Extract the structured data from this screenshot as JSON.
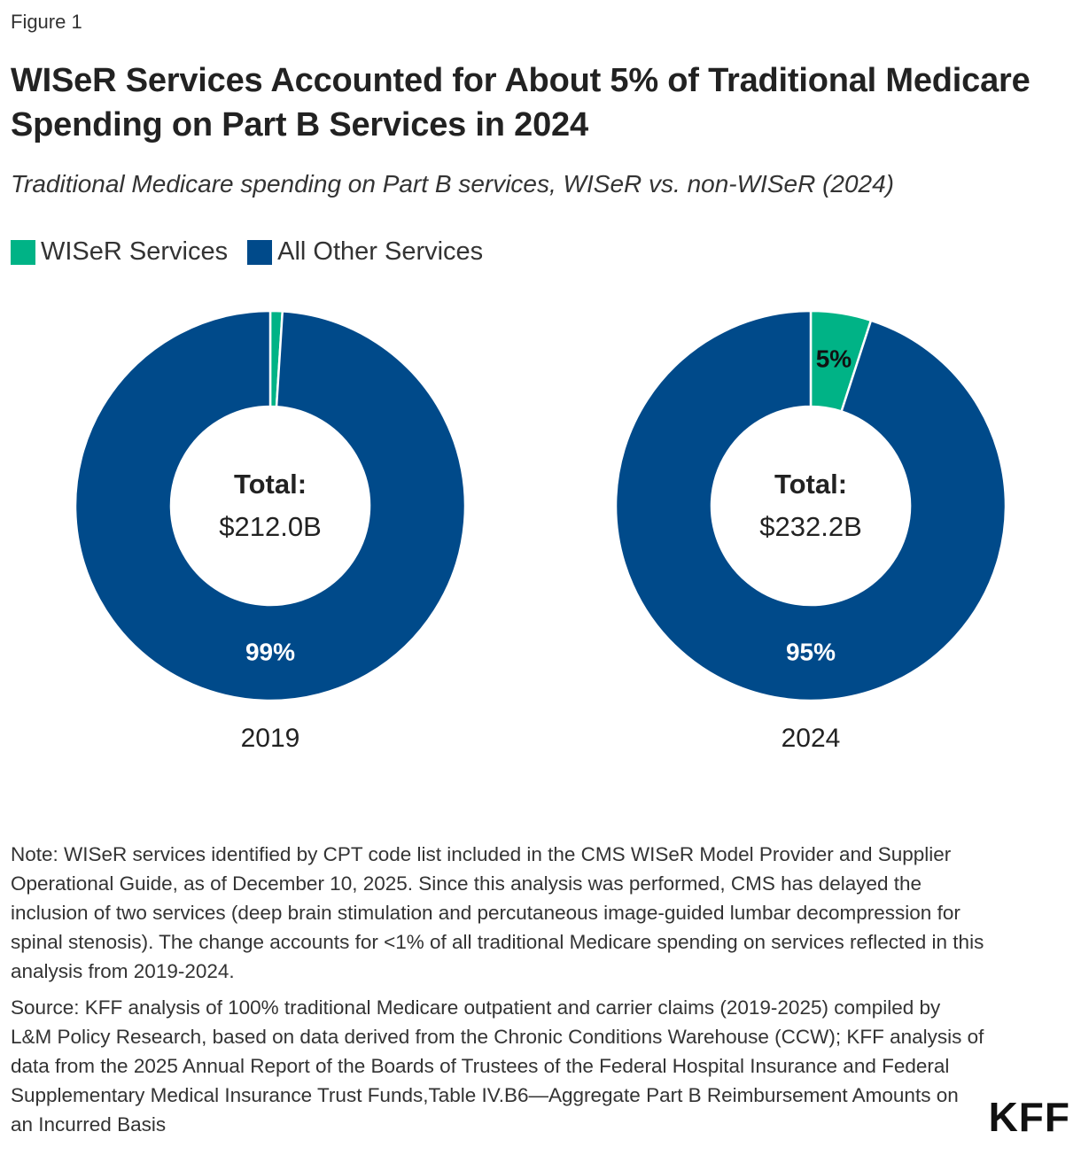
{
  "figure_label": "Figure 1",
  "title": "WISeR Services Accounted for About 5% of Traditional Medicare Spending on Part B Services in 2024",
  "subtitle": "Traditional Medicare spending on Part B services, WISeR vs. non-WISeR (2024)",
  "legend": [
    {
      "label": "WISeR Services",
      "color": "#00b386"
    },
    {
      "label": "All Other Services",
      "color": "#004a8a"
    }
  ],
  "chart_data": [
    {
      "type": "pie",
      "donut": true,
      "label": "2019",
      "center_label": "Total:",
      "center_value": "$212.0B",
      "slices": [
        {
          "name": "WISeR Services",
          "value": 1,
          "label": "",
          "color": "#00b386"
        },
        {
          "name": "All Other Services",
          "value": 99,
          "label": "99%",
          "color": "#004a8a"
        }
      ]
    },
    {
      "type": "pie",
      "donut": true,
      "label": "2024",
      "center_label": "Total:",
      "center_value": "$232.2B",
      "slices": [
        {
          "name": "WISeR Services",
          "value": 5,
          "label": "5%",
          "color": "#00b386"
        },
        {
          "name": "All Other Services",
          "value": 95,
          "label": "95%",
          "color": "#004a8a"
        }
      ]
    }
  ],
  "note": "Note: WISeR services identified by CPT code list included in the CMS WISeR Model Provider and Supplier Operational Guide, as of December 10, 2025. Since this analysis was performed, CMS has delayed the inclusion of two services (deep brain stimulation and percutaneous image-guided lumbar decompression for spinal stenosis). The change accounts for <1% of all traditional Medicare spending on services reflected in this analysis from 2019-2024.",
  "source": "Source: KFF analysis of 100% traditional Medicare outpatient and carrier claims (2019-2025) compiled by L&M Policy Research, based on data derived from the Chronic Conditions Warehouse (CCW); KFF analysis of data from the 2025 Annual Report of the Boards of Trustees of the Federal Hospital Insurance and Federal Supplementary Medical Insurance Trust Funds,Table IV.B6—Aggregate Part B Reimbursement Amounts on an Incurred Basis",
  "logo": "KFF"
}
